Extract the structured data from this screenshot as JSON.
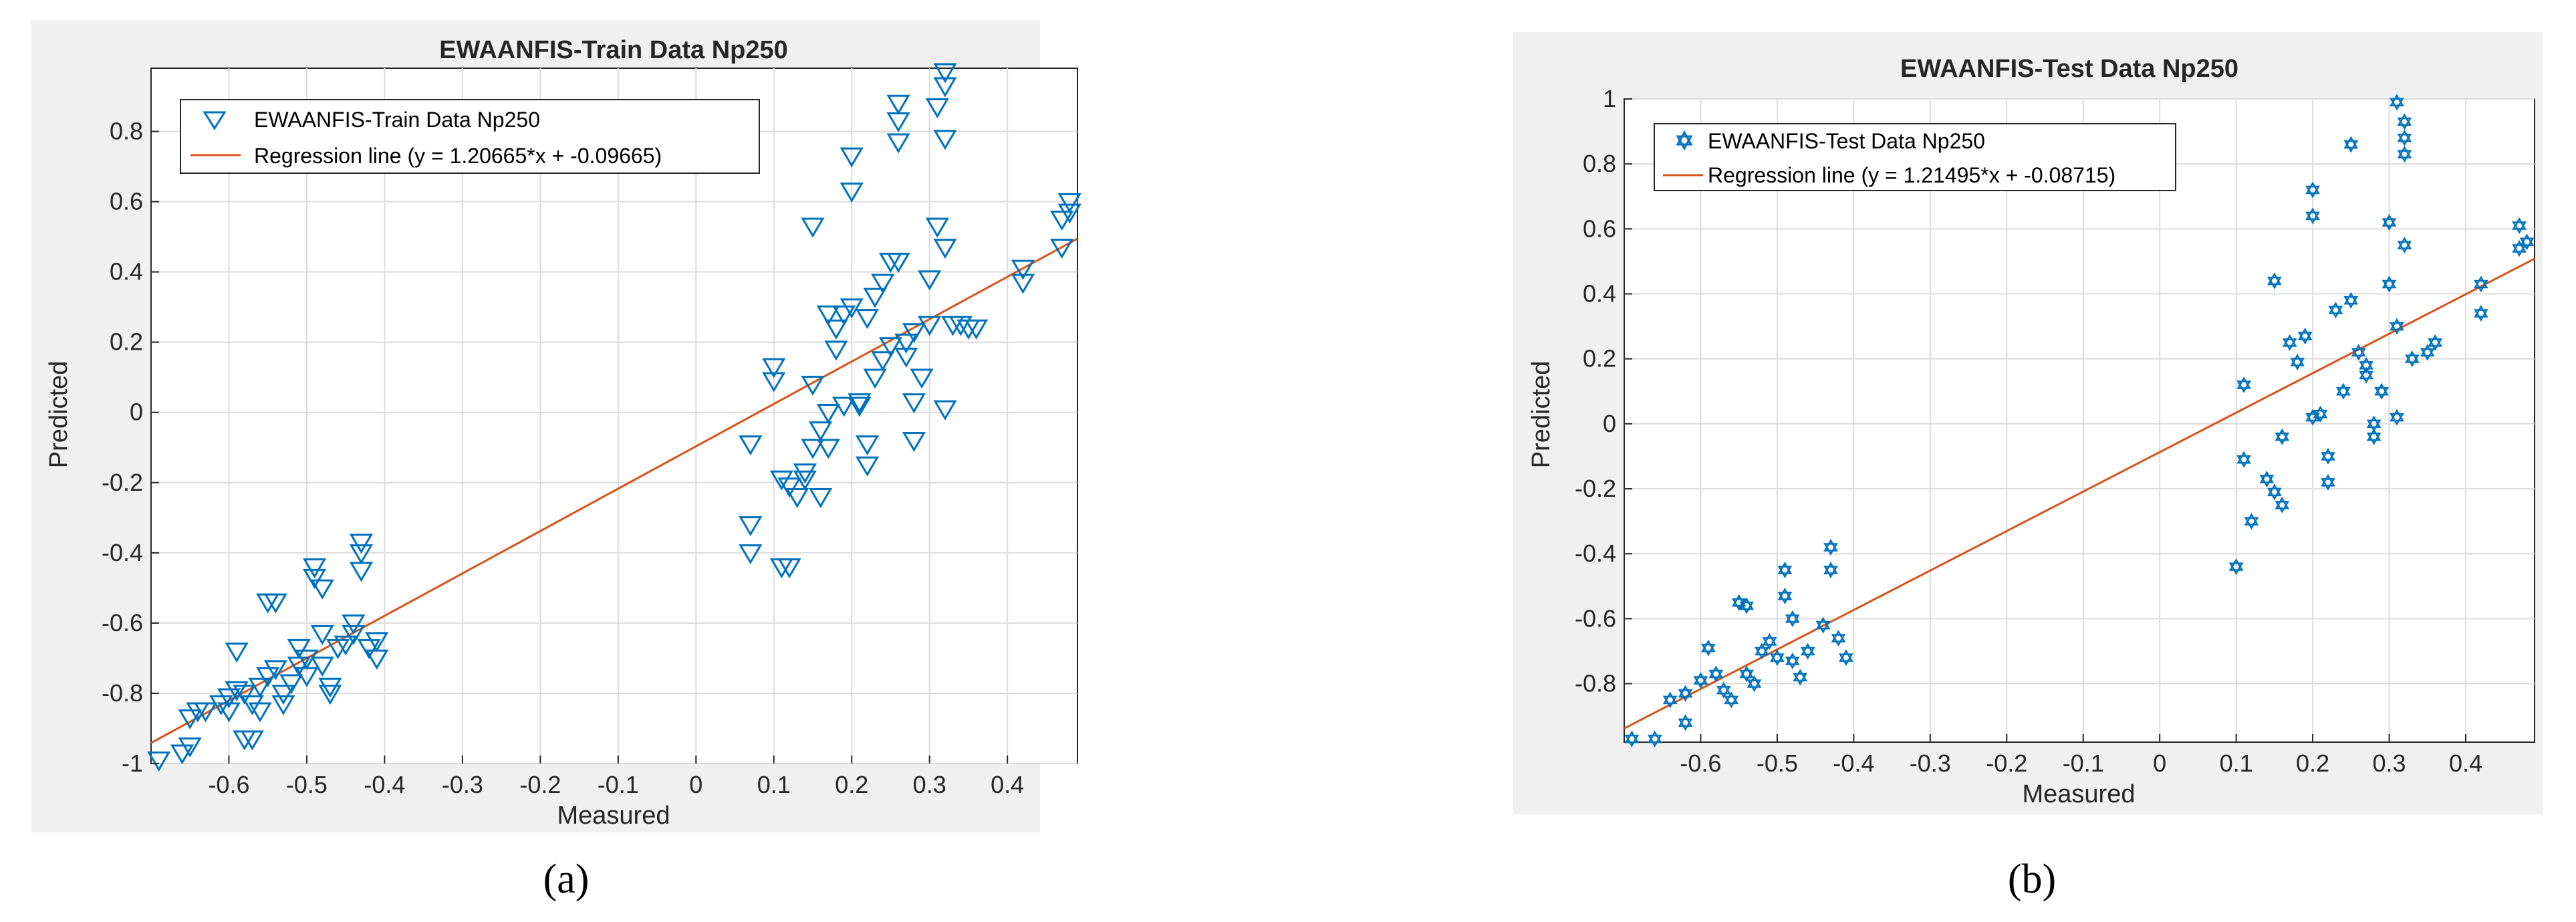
{
  "chart_data": [
    {
      "type": "scatter",
      "panel_label": "(a)",
      "title": "EWAANFIS-Train Data Np250",
      "xlabel": "Measured",
      "ylabel": "Predicted",
      "xlim": [
        -0.7,
        0.49
      ],
      "ylim": [
        -1.0,
        0.98
      ],
      "xticks": [
        -0.6,
        -0.5,
        -0.4,
        -0.3,
        -0.2,
        -0.1,
        0,
        0.1,
        0.2,
        0.3,
        0.4
      ],
      "yticks": [
        -1,
        -0.8,
        -0.6,
        -0.4,
        -0.2,
        0,
        0.2,
        0.4,
        0.6,
        0.8
      ],
      "grid": true,
      "legend_position": "top-left",
      "marker": "triangle-down",
      "series": [
        {
          "name": "EWAANFIS-Train Data Np250",
          "color": "#0072BD",
          "points": [
            [
              -0.69,
              -0.99
            ],
            [
              -0.66,
              -0.97
            ],
            [
              -0.65,
              -0.95
            ],
            [
              -0.64,
              -0.85
            ],
            [
              -0.65,
              -0.87
            ],
            [
              -0.63,
              -0.85
            ],
            [
              -0.61,
              -0.83
            ],
            [
              -0.6,
              -0.81
            ],
            [
              -0.6,
              -0.85
            ],
            [
              -0.59,
              -0.79
            ],
            [
              -0.59,
              -0.68
            ],
            [
              -0.58,
              -0.8
            ],
            [
              -0.58,
              -0.93
            ],
            [
              -0.57,
              -0.93
            ],
            [
              -0.57,
              -0.83
            ],
            [
              -0.56,
              -0.85
            ],
            [
              -0.56,
              -0.78
            ],
            [
              -0.55,
              -0.75
            ],
            [
              -0.55,
              -0.54
            ],
            [
              -0.54,
              -0.54
            ],
            [
              -0.54,
              -0.73
            ],
            [
              -0.53,
              -0.8
            ],
            [
              -0.53,
              -0.83
            ],
            [
              -0.52,
              -0.77
            ],
            [
              -0.51,
              -0.67
            ],
            [
              -0.51,
              -0.72
            ],
            [
              -0.5,
              -0.7
            ],
            [
              -0.5,
              -0.75
            ],
            [
              -0.49,
              -0.44
            ],
            [
              -0.49,
              -0.47
            ],
            [
              -0.48,
              -0.5
            ],
            [
              -0.48,
              -0.63
            ],
            [
              -0.48,
              -0.72
            ],
            [
              -0.47,
              -0.78
            ],
            [
              -0.47,
              -0.8
            ],
            [
              -0.46,
              -0.67
            ],
            [
              -0.45,
              -0.66
            ],
            [
              -0.44,
              -0.6
            ],
            [
              -0.44,
              -0.63
            ],
            [
              -0.43,
              -0.37
            ],
            [
              -0.43,
              -0.4
            ],
            [
              -0.43,
              -0.45
            ],
            [
              -0.42,
              -0.67
            ],
            [
              -0.41,
              -0.7
            ],
            [
              -0.41,
              -0.65
            ],
            [
              0.07,
              -0.09
            ],
            [
              0.07,
              -0.32
            ],
            [
              0.07,
              -0.4
            ],
            [
              0.1,
              0.13
            ],
            [
              0.1,
              0.09
            ],
            [
              0.11,
              -0.19
            ],
            [
              0.11,
              -0.44
            ],
            [
              0.12,
              -0.44
            ],
            [
              0.12,
              -0.21
            ],
            [
              0.13,
              -0.24
            ],
            [
              0.14,
              -0.17
            ],
            [
              0.14,
              -0.19
            ],
            [
              0.15,
              0.53
            ],
            [
              0.15,
              0.08
            ],
            [
              0.15,
              -0.1
            ],
            [
              0.16,
              -0.05
            ],
            [
              0.16,
              -0.24
            ],
            [
              0.17,
              0.28
            ],
            [
              0.17,
              0.0
            ],
            [
              0.17,
              -0.1
            ],
            [
              0.18,
              0.24
            ],
            [
              0.18,
              0.18
            ],
            [
              0.19,
              0.28
            ],
            [
              0.19,
              0.02
            ],
            [
              0.2,
              0.73
            ],
            [
              0.2,
              0.63
            ],
            [
              0.2,
              0.3
            ],
            [
              0.21,
              0.03
            ],
            [
              0.21,
              0.02
            ],
            [
              0.22,
              0.27
            ],
            [
              0.22,
              -0.09
            ],
            [
              0.22,
              -0.15
            ],
            [
              0.23,
              0.33
            ],
            [
              0.23,
              0.1
            ],
            [
              0.24,
              0.15
            ],
            [
              0.24,
              0.37
            ],
            [
              0.25,
              0.43
            ],
            [
              0.25,
              0.19
            ],
            [
              0.26,
              0.88
            ],
            [
              0.26,
              0.83
            ],
            [
              0.26,
              0.77
            ],
            [
              0.26,
              0.43
            ],
            [
              0.27,
              0.2
            ],
            [
              0.27,
              0.16
            ],
            [
              0.28,
              0.23
            ],
            [
              0.28,
              0.03
            ],
            [
              0.28,
              -0.08
            ],
            [
              0.29,
              0.1
            ],
            [
              0.3,
              0.25
            ],
            [
              0.3,
              0.38
            ],
            [
              0.31,
              0.53
            ],
            [
              0.31,
              0.87
            ],
            [
              0.32,
              0.97
            ],
            [
              0.32,
              0.93
            ],
            [
              0.32,
              0.78
            ],
            [
              0.32,
              0.47
            ],
            [
              0.32,
              0.01
            ],
            [
              0.33,
              0.25
            ],
            [
              0.34,
              0.25
            ],
            [
              0.35,
              0.24
            ],
            [
              0.36,
              0.24
            ],
            [
              0.42,
              0.41
            ],
            [
              0.42,
              0.37
            ],
            [
              0.47,
              0.47
            ],
            [
              0.47,
              0.55
            ],
            [
              0.48,
              0.6
            ],
            [
              0.48,
              0.57
            ]
          ]
        },
        {
          "name": "Regression line (y = 1.20665*x + -0.09665)",
          "color": "#D95319",
          "slope": 1.20665,
          "intercept": -0.09665
        }
      ]
    },
    {
      "type": "scatter",
      "panel_label": "(b)",
      "title": "EWAANFIS-Test Data Np250",
      "xlabel": "Measured",
      "ylabel": "Predicted",
      "xlim": [
        -0.7,
        0.49
      ],
      "ylim": [
        -0.98,
        1.0
      ],
      "xticks": [
        -0.6,
        -0.5,
        -0.4,
        -0.3,
        -0.2,
        -0.1,
        0,
        0.1,
        0.2,
        0.3,
        0.4
      ],
      "yticks": [
        -0.8,
        -0.6,
        -0.4,
        -0.2,
        0,
        0.2,
        0.4,
        0.6,
        0.8,
        1
      ],
      "grid": true,
      "legend_position": "top-left",
      "marker": "hexagram",
      "series": [
        {
          "name": "EWAANFIS-Test Data Np250",
          "color": "#0072BD",
          "points": [
            [
              -0.69,
              -0.97
            ],
            [
              -0.66,
              -0.97
            ],
            [
              -0.64,
              -0.85
            ],
            [
              -0.62,
              -0.83
            ],
            [
              -0.62,
              -0.92
            ],
            [
              -0.6,
              -0.79
            ],
            [
              -0.59,
              -0.69
            ],
            [
              -0.58,
              -0.77
            ],
            [
              -0.57,
              -0.82
            ],
            [
              -0.56,
              -0.85
            ],
            [
              -0.55,
              -0.55
            ],
            [
              -0.54,
              -0.56
            ],
            [
              -0.54,
              -0.77
            ],
            [
              -0.53,
              -0.8
            ],
            [
              -0.52,
              -0.7
            ],
            [
              -0.51,
              -0.67
            ],
            [
              -0.5,
              -0.72
            ],
            [
              -0.49,
              -0.45
            ],
            [
              -0.49,
              -0.53
            ],
            [
              -0.48,
              -0.6
            ],
            [
              -0.48,
              -0.73
            ],
            [
              -0.47,
              -0.78
            ],
            [
              -0.46,
              -0.7
            ],
            [
              -0.44,
              -0.62
            ],
            [
              -0.43,
              -0.38
            ],
            [
              -0.43,
              -0.45
            ],
            [
              -0.42,
              -0.66
            ],
            [
              -0.41,
              -0.72
            ],
            [
              0.1,
              -0.44
            ],
            [
              0.11,
              0.12
            ],
            [
              0.11,
              -0.11
            ],
            [
              0.12,
              -0.3
            ],
            [
              0.14,
              -0.17
            ],
            [
              0.15,
              0.44
            ],
            [
              0.15,
              -0.21
            ],
            [
              0.16,
              -0.04
            ],
            [
              0.16,
              -0.25
            ],
            [
              0.17,
              0.25
            ],
            [
              0.18,
              0.19
            ],
            [
              0.19,
              0.27
            ],
            [
              0.2,
              0.72
            ],
            [
              0.2,
              0.64
            ],
            [
              0.2,
              0.02
            ],
            [
              0.21,
              0.03
            ],
            [
              0.22,
              -0.1
            ],
            [
              0.22,
              -0.18
            ],
            [
              0.23,
              0.35
            ],
            [
              0.24,
              0.1
            ],
            [
              0.25,
              0.38
            ],
            [
              0.25,
              0.86
            ],
            [
              0.26,
              0.22
            ],
            [
              0.27,
              0.18
            ],
            [
              0.27,
              0.15
            ],
            [
              0.28,
              0.0
            ],
            [
              0.28,
              -0.04
            ],
            [
              0.29,
              0.1
            ],
            [
              0.3,
              0.62
            ],
            [
              0.3,
              0.43
            ],
            [
              0.31,
              0.3
            ],
            [
              0.31,
              0.02
            ],
            [
              0.31,
              0.99
            ],
            [
              0.32,
              0.93
            ],
            [
              0.32,
              0.88
            ],
            [
              0.32,
              0.83
            ],
            [
              0.32,
              0.55
            ],
            [
              0.33,
              0.2
            ],
            [
              0.35,
              0.22
            ],
            [
              0.36,
              0.25
            ],
            [
              0.42,
              0.43
            ],
            [
              0.42,
              0.34
            ],
            [
              0.47,
              0.54
            ],
            [
              0.47,
              0.61
            ],
            [
              0.48,
              0.56
            ]
          ]
        },
        {
          "name": "Regression line (y = 1.21495*x + -0.08715)",
          "color": "#D95319",
          "slope": 1.21495,
          "intercept": -0.08715
        }
      ]
    }
  ]
}
